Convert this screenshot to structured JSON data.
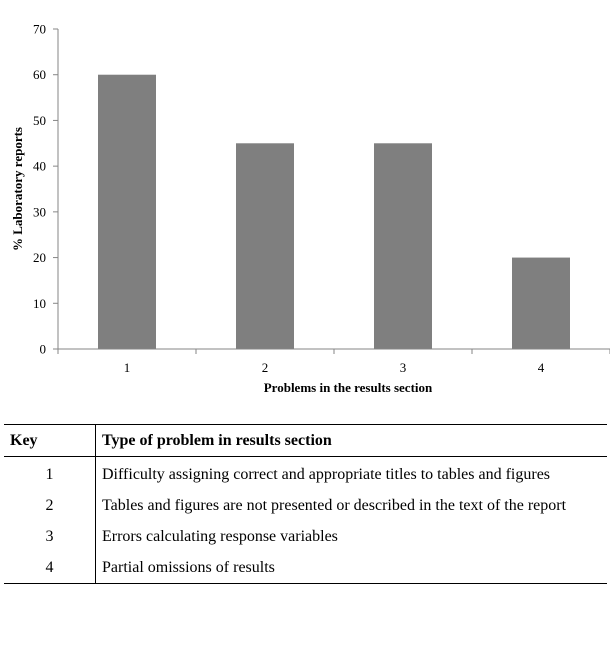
{
  "chart_data": {
    "type": "bar",
    "categories": [
      "1",
      "2",
      "3",
      "4"
    ],
    "values": [
      60,
      45,
      45,
      20
    ],
    "xlabel": "Problems in the results section",
    "ylabel": "% Laboratory reports",
    "ylim": [
      0,
      70
    ],
    "yticks": [
      0,
      10,
      20,
      30,
      40,
      50,
      60,
      70
    ],
    "bar_color": "#7f7f7f",
    "grid": false
  },
  "key_table": {
    "headers": [
      "Key",
      "Type of problem in results section"
    ],
    "rows": [
      {
        "key": "1",
        "description": "Difficulty assigning correct and appropriate titles to tables and figures"
      },
      {
        "key": "2",
        "description": "Tables and figures are not presented or described in the text of the report"
      },
      {
        "key": "3",
        "description": "Errors calculating response variables"
      },
      {
        "key": "4",
        "description": "Partial omissions of results"
      }
    ]
  }
}
